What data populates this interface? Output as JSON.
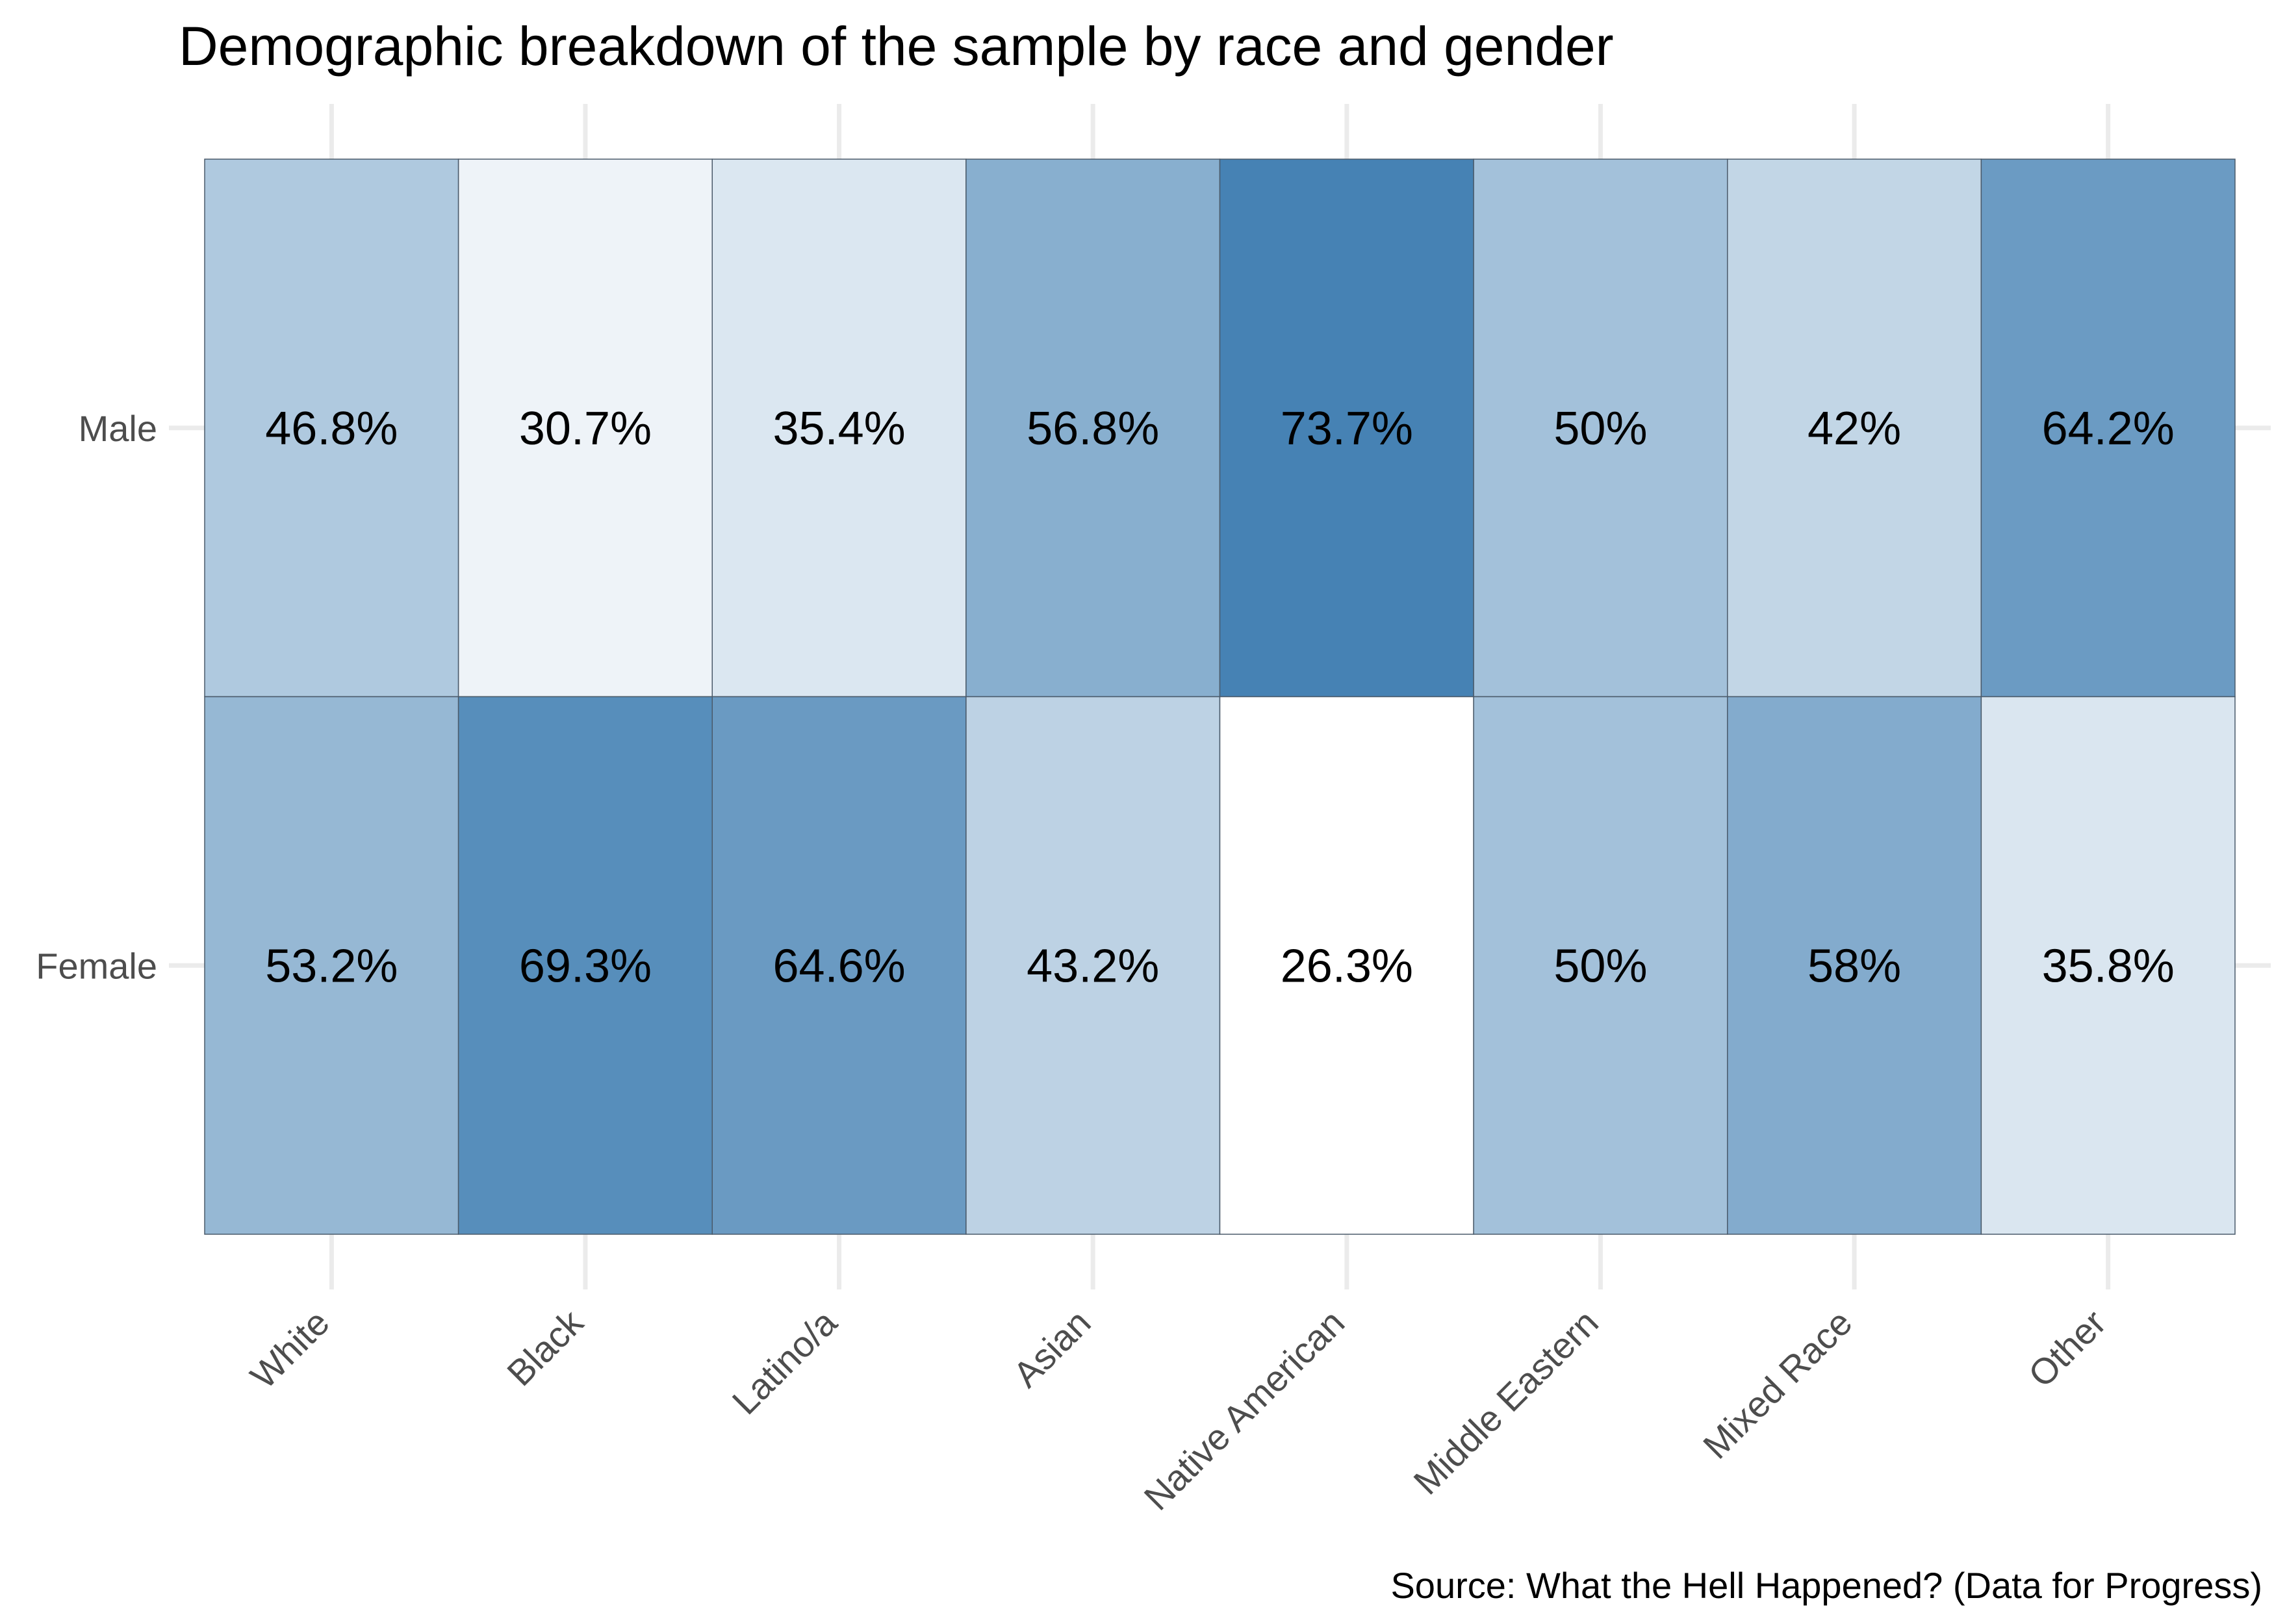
{
  "chart_data": {
    "type": "heatmap",
    "title": "Demographic breakdown of the sample by race and gender",
    "caption": "Source: What the Hell Happened? (Data for Progress)",
    "xlabel": "",
    "ylabel": "",
    "categories": [
      "White",
      "Black",
      "Latino/a",
      "Asian",
      "Native American",
      "Middle Eastern",
      "Mixed Race",
      "Other"
    ],
    "rows": [
      "Male",
      "Female"
    ],
    "series": [
      {
        "name": "Male",
        "values": [
          46.8,
          30.7,
          35.4,
          56.8,
          73.7,
          50,
          42,
          64.2
        ]
      },
      {
        "name": "Female",
        "values": [
          53.2,
          69.3,
          64.6,
          43.2,
          26.3,
          50,
          58,
          35.8
        ]
      }
    ],
    "labels": [
      [
        "46.8%",
        "30.7%",
        "35.4%",
        "56.8%",
        "73.7%",
        "50%",
        "42%",
        "64.2%"
      ],
      [
        "53.2%",
        "69.3%",
        "64.6%",
        "43.2%",
        "26.3%",
        "50%",
        "58%",
        "35.8%"
      ]
    ],
    "color_scale": {
      "low": "#ffffff",
      "high": "#4682b4",
      "min": 26.3,
      "max": 73.7
    },
    "grid": true,
    "legend": "none"
  }
}
